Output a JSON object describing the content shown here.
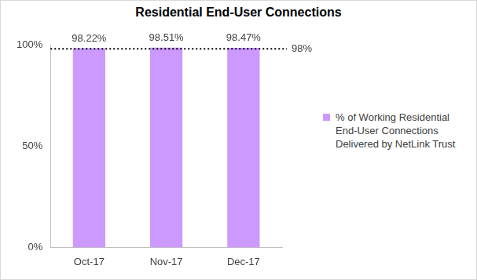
{
  "chart_data": {
    "type": "bar",
    "title": "Residential End-User Connections",
    "categories": [
      "Oct-17",
      "Nov-17",
      "Dec-17"
    ],
    "series": [
      {
        "name": "% of Working Residential End-User Connections Delivered by NetLink Trust",
        "color": "#cc99ff",
        "values": [
          98.22,
          98.51,
          98.47
        ],
        "value_labels": [
          "98.22%",
          "98.51%",
          "98.47%"
        ]
      }
    ],
    "ylim": [
      0,
      100
    ],
    "yticks": [
      {
        "value": 0,
        "label": "0%"
      },
      {
        "value": 50,
        "label": "50%"
      },
      {
        "value": 100,
        "label": "100%"
      }
    ],
    "grid": false,
    "legend": "right",
    "data_labels": true,
    "annotations": [
      {
        "y": 98,
        "label": "98%",
        "line_style": "dotted",
        "color": "#000000"
      }
    ]
  }
}
